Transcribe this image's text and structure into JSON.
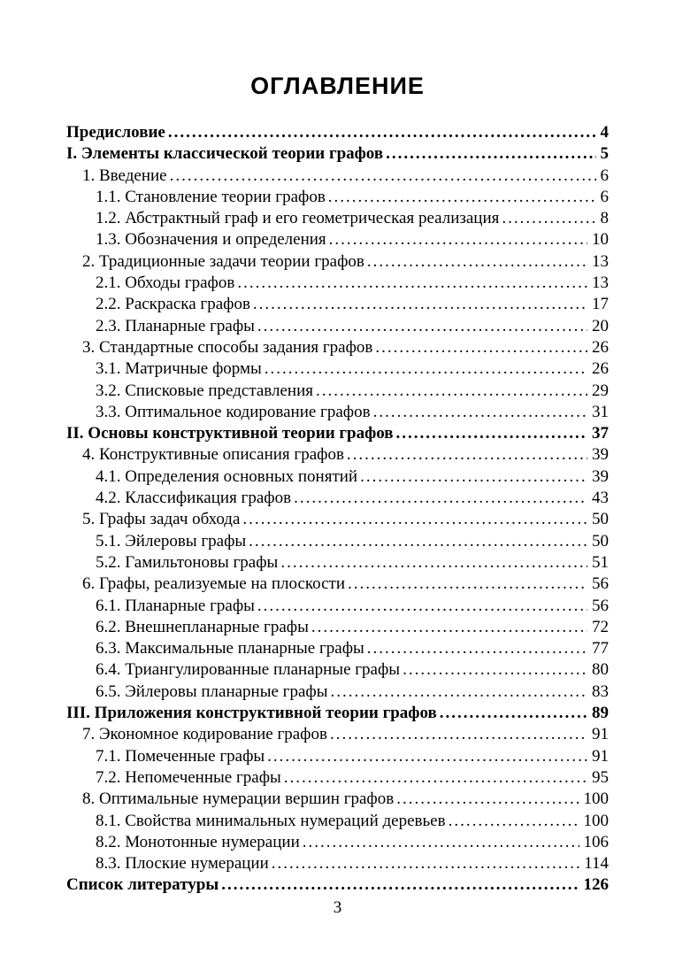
{
  "page": {
    "title": "ОГЛАВЛЕНИЕ",
    "footer_page_number": "3"
  },
  "toc": {
    "entries": [
      {
        "label": "Предисловие",
        "page": "4",
        "level": 0,
        "bold": true
      },
      {
        "label": "I. Элементы классической теории графов",
        "page": "5",
        "level": 0,
        "bold": true
      },
      {
        "label": "1. Введение",
        "page": "6",
        "level": 1,
        "bold": false
      },
      {
        "label": "1.1. Становление теории графов",
        "page": "6",
        "level": 2,
        "bold": false
      },
      {
        "label": "1.2. Абстрактный граф и его геометрическая реализация",
        "page": "8",
        "level": 2,
        "bold": false
      },
      {
        "label": "1.3. Обозначения и определения",
        "page": "10",
        "level": 2,
        "bold": false
      },
      {
        "label": "2. Традиционные задачи теории графов",
        "page": "13",
        "level": 1,
        "bold": false
      },
      {
        "label": "2.1. Обходы графов",
        "page": "13",
        "level": 2,
        "bold": false
      },
      {
        "label": "2.2. Раскраска графов",
        "page": "17",
        "level": 2,
        "bold": false
      },
      {
        "label": "2.3. Планарные графы",
        "page": "20",
        "level": 2,
        "bold": false
      },
      {
        "label": "3. Стандартные способы задания графов",
        "page": "26",
        "level": 1,
        "bold": false
      },
      {
        "label": "3.1. Матричные формы",
        "page": "26",
        "level": 2,
        "bold": false
      },
      {
        "label": "3.2. Списковые представления",
        "page": "29",
        "level": 2,
        "bold": false
      },
      {
        "label": "3.3. Оптимальное кодирование графов",
        "page": "31",
        "level": 2,
        "bold": false
      },
      {
        "label": "II. Основы конструктивной теории графов",
        "page": "37",
        "level": 0,
        "bold": true
      },
      {
        "label": "4. Конструктивные описания графов",
        "page": "39",
        "level": 1,
        "bold": false
      },
      {
        "label": "4.1. Определения основных понятий",
        "page": "39",
        "level": 2,
        "bold": false
      },
      {
        "label": "4.2. Классификация графов",
        "page": "43",
        "level": 2,
        "bold": false
      },
      {
        "label": "5. Графы задач обхода",
        "page": "50",
        "level": 1,
        "bold": false
      },
      {
        "label": "5.1. Эйлеровы графы",
        "page": "50",
        "level": 2,
        "bold": false
      },
      {
        "label": "5.2. Гамильтоновы графы",
        "page": "51",
        "level": 2,
        "bold": false
      },
      {
        "label": "6. Графы, реализуемые на плоскости",
        "page": "56",
        "level": 1,
        "bold": false
      },
      {
        "label": "6.1. Планарные графы",
        "page": "56",
        "level": 2,
        "bold": false
      },
      {
        "label": "6.2. Внешнепланарные графы",
        "page": "72",
        "level": 2,
        "bold": false
      },
      {
        "label": "6.3. Максимальные планарные графы",
        "page": "77",
        "level": 2,
        "bold": false
      },
      {
        "label": "6.4. Триангулированные планарные графы",
        "page": "80",
        "level": 2,
        "bold": false
      },
      {
        "label": "6.5. Эйлеровы планарные графы",
        "page": "83",
        "level": 2,
        "bold": false
      },
      {
        "label": "III. Приложения конструктивной теории графов",
        "page": "89",
        "level": 0,
        "bold": true
      },
      {
        "label": "7. Экономное кодирование графов",
        "page": "91",
        "level": 1,
        "bold": false
      },
      {
        "label": "7.1. Помеченные графы",
        "page": "91",
        "level": 2,
        "bold": false
      },
      {
        "label": "7.2. Непомеченные графы",
        "page": "95",
        "level": 2,
        "bold": false
      },
      {
        "label": "8. Оптимальные нумерации вершин графов",
        "page": "100",
        "level": 1,
        "bold": false
      },
      {
        "label": "8.1. Свойства минимальных нумераций деревьев",
        "page": "100",
        "level": 2,
        "bold": false
      },
      {
        "label": "8.2. Монотонные нумерации",
        "page": "106",
        "level": 2,
        "bold": false
      },
      {
        "label": "8.3. Плоские нумерации",
        "page": "114",
        "level": 2,
        "bold": false
      },
      {
        "label": "Список литературы",
        "page": "126",
        "level": 0,
        "bold": true
      }
    ]
  }
}
